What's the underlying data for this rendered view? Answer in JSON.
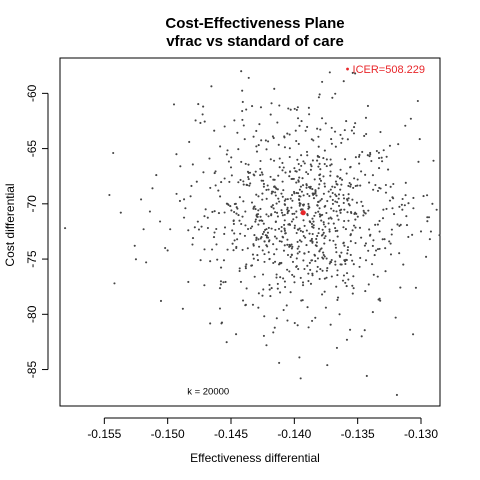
{
  "chart_data": {
    "type": "scatter",
    "title": "Cost-Effectiveness Plane",
    "subtitle": "vfrac vs standard of care",
    "xlabel": "Effectiveness differential",
    "ylabel": "Cost differential",
    "xlim": [
      -0.1585,
      -0.1285
    ],
    "ylim": [
      -88.3,
      -56.8
    ],
    "x_ticks": [
      -0.155,
      -0.15,
      -0.145,
      -0.14,
      -0.135,
      -0.13
    ],
    "x_tick_labels": [
      "-0.155",
      "-0.150",
      "-0.145",
      "-0.140",
      "-0.135",
      "-0.130"
    ],
    "y_ticks": [
      -85,
      -80,
      -75,
      -70,
      -65,
      -60
    ],
    "y_tick_labels": [
      "-85",
      "-80",
      "-75",
      "-70",
      "-65",
      "-60"
    ],
    "grid": false,
    "point_color": "#444444",
    "highlight_color": "#e8262a",
    "series": [
      {
        "points": [
          [
            -0.1581,
            -72.2
          ],
          [
            -0.1546,
            -69.2
          ],
          [
            -0.1543,
            -65.4
          ],
          [
            -0.1542,
            -77.2
          ],
          [
            -0.1537,
            -70.8
          ],
          [
            -0.1526,
            -73.8
          ],
          [
            -0.1521,
            -69.6
          ],
          [
            -0.1519,
            -72.3
          ],
          [
            -0.1517,
            -75.3
          ],
          [
            -0.1514,
            -70.7
          ],
          [
            -0.1512,
            -68.6
          ],
          [
            -0.1509,
            -67.4
          ],
          [
            -0.1506,
            -71.6
          ],
          [
            -0.1502,
            -74.0
          ],
          [
            -0.1498,
            -72.3
          ],
          [
            -0.1495,
            -61.0
          ],
          [
            -0.1493,
            -69.1
          ],
          [
            -0.149,
            -66.6
          ],
          [
            -0.1488,
            -79.5
          ],
          [
            -0.1486,
            -70.4
          ],
          [
            -0.1483,
            -64.4
          ],
          [
            -0.148,
            -73.1
          ],
          [
            -0.1477,
            -68.0
          ],
          [
            -0.1474,
            -75.1
          ],
          [
            -0.1472,
            -61.2
          ],
          [
            -0.147,
            -70.5
          ],
          [
            -0.1467,
            -65.9
          ],
          [
            -0.1463,
            -72.6
          ],
          [
            -0.146,
            -68.8
          ],
          [
            -0.1458,
            -77.3
          ],
          [
            -0.1455,
            -63.0
          ],
          [
            -0.1452,
            -70.1
          ],
          [
            -0.145,
            -66.7
          ],
          [
            -0.1448,
            -74.2
          ],
          [
            -0.1446,
            -81.8
          ],
          [
            -0.1443,
            -69.4
          ],
          [
            -0.1441,
            -62.4
          ],
          [
            -0.1439,
            -72.9
          ],
          [
            -0.1436,
            -67.2
          ],
          [
            -0.1434,
            -75.6
          ],
          [
            -0.1432,
            -70.3
          ],
          [
            -0.143,
            -64.8
          ],
          [
            -0.1428,
            -78.1
          ],
          [
            -0.1426,
            -71.5
          ],
          [
            -0.1424,
            -68.2
          ],
          [
            -0.1422,
            -82.8
          ],
          [
            -0.142,
            -73.4
          ],
          [
            -0.1418,
            -60.9
          ],
          [
            -0.1416,
            -66.1
          ],
          [
            -0.1414,
            -76.4
          ],
          [
            -0.1412,
            -69.8
          ],
          [
            -0.141,
            -72.1
          ],
          [
            -0.1408,
            -63.9
          ],
          [
            -0.1406,
            -79.2
          ],
          [
            -0.1404,
            -67.5
          ],
          [
            -0.1402,
            -74.6
          ],
          [
            -0.14,
            -70.9
          ],
          [
            -0.1398,
            -61.5
          ],
          [
            -0.1396,
            -83.9
          ],
          [
            -0.1394,
            -68.9
          ],
          [
            -0.1392,
            -75.9
          ],
          [
            -0.139,
            -65.3
          ],
          [
            -0.1388,
            -72.7
          ],
          [
            -0.1386,
            -80.6
          ],
          [
            -0.1384,
            -69.1
          ],
          [
            -0.1382,
            -63.2
          ],
          [
            -0.138,
            -76.8
          ],
          [
            -0.1378,
            -71.0
          ],
          [
            -0.1376,
            -66.4
          ],
          [
            -0.1374,
            -84.6
          ],
          [
            -0.1372,
            -73.3
          ],
          [
            -0.137,
            -60.4
          ],
          [
            -0.1368,
            -68.5
          ],
          [
            -0.1366,
            -78.7
          ],
          [
            -0.1364,
            -70.6
          ],
          [
            -0.1362,
            -64.1
          ],
          [
            -0.136,
            -75.2
          ],
          [
            -0.1358,
            -69.7
          ],
          [
            -0.1356,
            -81.4
          ],
          [
            -0.1354,
            -72.4
          ],
          [
            -0.1352,
            -62.7
          ],
          [
            -0.135,
            -67.8
          ],
          [
            -0.1348,
            -74.9
          ],
          [
            -0.1346,
            -70.2
          ],
          [
            -0.1344,
            -77.9
          ],
          [
            -0.1342,
            -65.6
          ],
          [
            -0.134,
            -72.8
          ],
          [
            -0.1338,
            -79.8
          ],
          [
            -0.1336,
            -68.3
          ],
          [
            -0.1334,
            -74.1
          ],
          [
            -0.1332,
            -63.5
          ],
          [
            -0.133,
            -71.3
          ],
          [
            -0.1328,
            -76.1
          ],
          [
            -0.1326,
            -66.9
          ],
          [
            -0.1324,
            -73.6
          ],
          [
            -0.1322,
            -69.5
          ],
          [
            -0.132,
            -80.3
          ],
          [
            -0.1318,
            -64.6
          ],
          [
            -0.1316,
            -71.9
          ],
          [
            -0.1314,
            -75.5
          ],
          [
            -0.1312,
            -68.1
          ],
          [
            -0.131,
            -73.0
          ],
          [
            -0.1308,
            -62.3
          ],
          [
            -0.1306,
            -70.4
          ],
          [
            -0.1304,
            -77.6
          ],
          [
            -0.1302,
            -66.2
          ],
          [
            -0.13,
            -72.5
          ],
          [
            -0.1298,
            -69.3
          ],
          [
            -0.1296,
            -74.8
          ],
          [
            -0.1293,
            -73.2
          ],
          [
            -0.1291,
            -70.0
          ],
          [
            -0.1319,
            -87.3
          ],
          [
            -0.1352,
            -58.2
          ],
          [
            -0.1361,
            -58.9
          ],
          [
            -0.1412,
            -84.4
          ],
          [
            -0.1436,
            -58.6
          ],
          [
            -0.138,
            -60.1
          ],
          [
            -0.1395,
            -85.8
          ]
        ]
      }
    ],
    "highlight_point": [
      -0.1393,
      -70.8
    ],
    "icer_marker": [
      -0.1358,
      -57.8
    ],
    "icer_label": "ICER=508.229",
    "annotation": "k = 20000",
    "annotation_position": [
      -0.1468,
      -87.0
    ]
  }
}
